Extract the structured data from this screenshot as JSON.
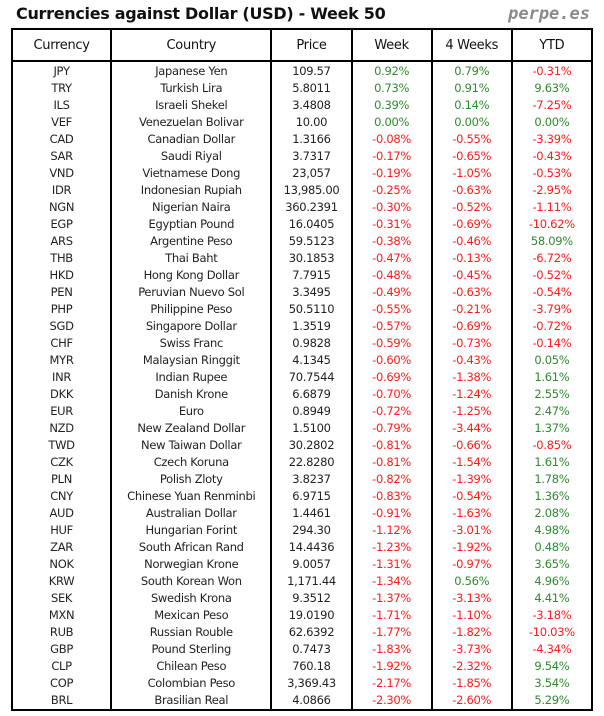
{
  "title": "Currencies against Dollar (USD) - Week 50",
  "brand": "perpe.es",
  "colors": {
    "positive": "#2e8b2e",
    "negative": "#ff1a1a"
  },
  "headers": [
    "Currency",
    "Country",
    "Price",
    "Week",
    "4 Weeks",
    "YTD"
  ],
  "rows": [
    [
      "JPY",
      "Japanese Yen",
      "109.57",
      "0.92%",
      "0.79%",
      "-0.31%"
    ],
    [
      "TRY",
      "Turkish Lira",
      "5.8011",
      "0.73%",
      "0.91%",
      "9.63%"
    ],
    [
      "ILS",
      "Israeli Shekel",
      "3.4808",
      "0.39%",
      "0.14%",
      "-7.25%"
    ],
    [
      "VEF",
      "Venezuelan Bolivar",
      "10.00",
      "0.00%",
      "0.00%",
      "0.00%"
    ],
    [
      "CAD",
      "Canadian Dollar",
      "1.3166",
      "-0.08%",
      "-0.55%",
      "-3.39%"
    ],
    [
      "SAR",
      "Saudi Riyal",
      "3.7317",
      "-0.17%",
      "-0.65%",
      "-0.43%"
    ],
    [
      "VND",
      "Vietnamese Dong",
      "23,057",
      "-0.19%",
      "-1.05%",
      "-0.53%"
    ],
    [
      "IDR",
      "Indonesian Rupiah",
      "13,985.00",
      "-0.25%",
      "-0.63%",
      "-2.95%"
    ],
    [
      "NGN",
      "Nigerian Naira",
      "360.2391",
      "-0.30%",
      "-0.52%",
      "-1.11%"
    ],
    [
      "EGP",
      "Egyptian Pound",
      "16.0405",
      "-0.31%",
      "-0.69%",
      "-10.62%"
    ],
    [
      "ARS",
      "Argentine Peso",
      "59.5123",
      "-0.38%",
      "-0.46%",
      "58.09%"
    ],
    [
      "THB",
      "Thai Baht",
      "30.1853",
      "-0.47%",
      "-0.13%",
      "-6.72%"
    ],
    [
      "HKD",
      "Hong Kong Dollar",
      "7.7915",
      "-0.48%",
      "-0.45%",
      "-0.52%"
    ],
    [
      "PEN",
      "Peruvian Nuevo Sol",
      "3.3495",
      "-0.49%",
      "-0.63%",
      "-0.54%"
    ],
    [
      "PHP",
      "Philippine Peso",
      "50.5110",
      "-0.55%",
      "-0.21%",
      "-3.79%"
    ],
    [
      "SGD",
      "Singapore Dollar",
      "1.3519",
      "-0.57%",
      "-0.69%",
      "-0.72%"
    ],
    [
      "CHF",
      "Swiss Franc",
      "0.9828",
      "-0.59%",
      "-0.73%",
      "-0.14%"
    ],
    [
      "MYR",
      "Malaysian Ringgit",
      "4.1345",
      "-0.60%",
      "-0.43%",
      "0.05%"
    ],
    [
      "INR",
      "Indian Rupee",
      "70.7544",
      "-0.69%",
      "-1.38%",
      "1.61%"
    ],
    [
      "DKK",
      "Danish Krone",
      "6.6879",
      "-0.70%",
      "-1.24%",
      "2.55%"
    ],
    [
      "EUR",
      "Euro",
      "0.8949",
      "-0.72%",
      "-1.25%",
      "2.47%"
    ],
    [
      "NZD",
      "New Zealand Dollar",
      "1.5100",
      "-0.79%",
      "-3.44%",
      "1.37%"
    ],
    [
      "TWD",
      "New Taiwan Dollar",
      "30.2802",
      "-0.81%",
      "-0.66%",
      "-0.85%"
    ],
    [
      "CZK",
      "Czech Koruna",
      "22.8280",
      "-0.81%",
      "-1.54%",
      "1.61%"
    ],
    [
      "PLN",
      "Polish Zloty",
      "3.8237",
      "-0.82%",
      "-1.39%",
      "1.78%"
    ],
    [
      "CNY",
      "Chinese Yuan Renminbi",
      "6.9715",
      "-0.83%",
      "-0.54%",
      "1.36%"
    ],
    [
      "AUD",
      "Australian Dollar",
      "1.4461",
      "-0.91%",
      "-1.63%",
      "2.08%"
    ],
    [
      "HUF",
      "Hungarian Forint",
      "294.30",
      "-1.12%",
      "-3.01%",
      "4.98%"
    ],
    [
      "ZAR",
      "South African Rand",
      "14.4436",
      "-1.23%",
      "-1.92%",
      "0.48%"
    ],
    [
      "NOK",
      "Norwegian Krone",
      "9.0057",
      "-1.31%",
      "-0.97%",
      "3.65%"
    ],
    [
      "KRW",
      "South Korean Won",
      "1,171.44",
      "-1.34%",
      "0.56%",
      "4.96%"
    ],
    [
      "SEK",
      "Swedish Krona",
      "9.3512",
      "-1.37%",
      "-3.13%",
      "4.41%"
    ],
    [
      "MXN",
      "Mexican Peso",
      "19.0190",
      "-1.71%",
      "-1.10%",
      "-3.18%"
    ],
    [
      "RUB",
      "Russian Rouble",
      "62.6392",
      "-1.77%",
      "-1.82%",
      "-10.03%"
    ],
    [
      "GBP",
      "Pound Sterling",
      "0.7473",
      "-1.83%",
      "-3.73%",
      "-4.34%"
    ],
    [
      "CLP",
      "Chilean Peso",
      "760.18",
      "-1.92%",
      "-2.32%",
      "9.54%"
    ],
    [
      "COP",
      "Colombian Peso",
      "3,369.43",
      "-2.17%",
      "-1.85%",
      "3.54%"
    ],
    [
      "BRL",
      "Brasilian Real",
      "4.0866",
      "-2.30%",
      "-2.60%",
      "5.29%"
    ]
  ]
}
